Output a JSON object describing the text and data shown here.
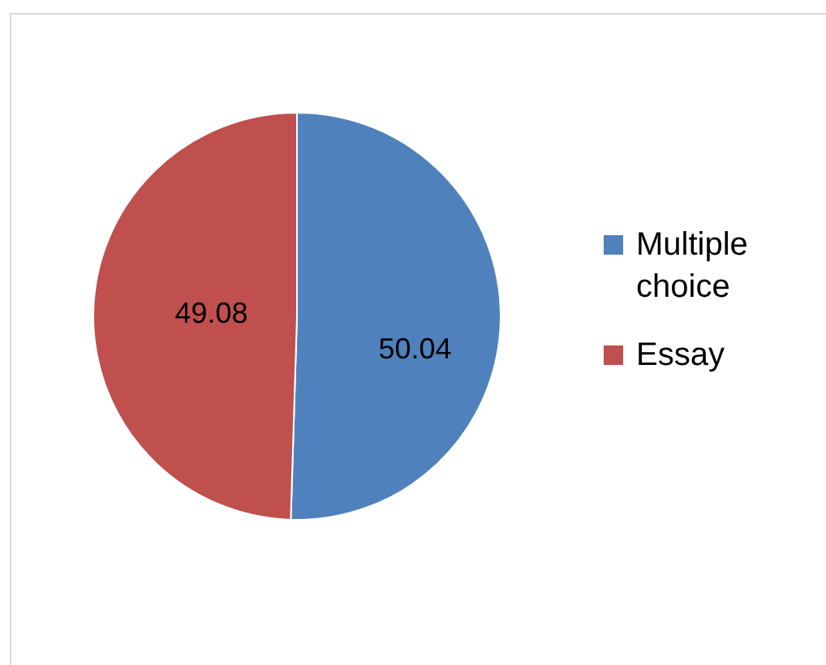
{
  "chart_data": {
    "type": "pie",
    "categories": [
      "Multiple choice",
      "Essay"
    ],
    "values": [
      50.04,
      49.08
    ],
    "colors": [
      "#4f81bd",
      "#c0504d"
    ],
    "data_labels": true,
    "legend": "right"
  }
}
